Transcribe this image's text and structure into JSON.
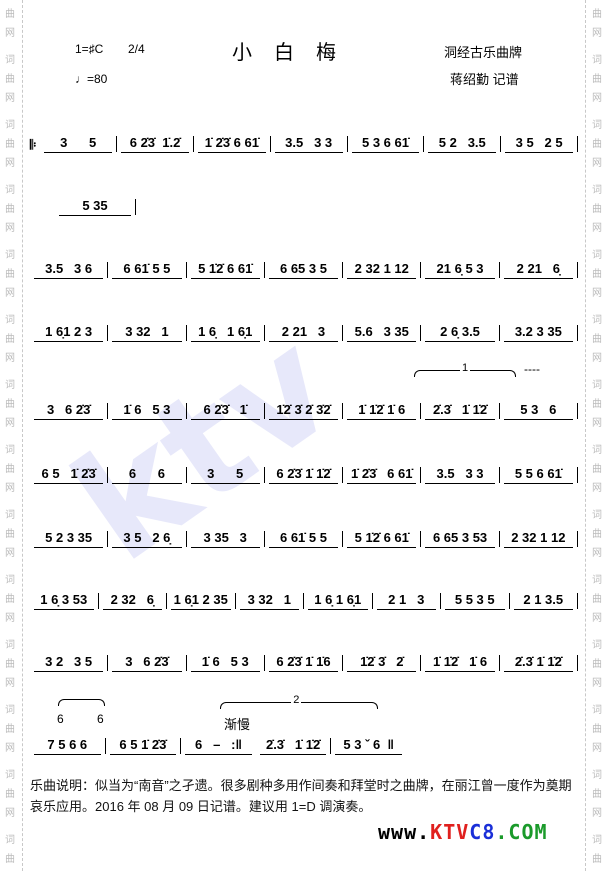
{
  "header": {
    "key": "1=♯C",
    "meter": "2/4",
    "tempo": "♩=80",
    "title": "小白梅",
    "genre": "洞经古乐曲牌",
    "author": "蒋绍勤 记谱"
  },
  "side_watermark": [
    "词",
    "曲",
    "网"
  ],
  "score": {
    "lines": [
      [
        "3      5",
        "6 2̇3̇  1̇.2̇",
        "1̇ 2̇3̇ 6 61̇",
        "3.5   3 3",
        "5 3 6 61̇",
        "5 2   3.5",
        "3 5   2 5"
      ],
      [
        "5 35"
      ],
      [
        "3.5   3 6",
        "6 61̇ 5 5",
        "5 1̇2̇ 6 61̇",
        "6 65 3 5",
        "2 32 1 12",
        "21 6̣ 5 3",
        "2 21   6̣"
      ],
      [
        "1 6̣1 2 3",
        "3 32   1",
        "1 6̣   1 6̣1",
        "2 21   3",
        "5.6   3 35",
        "2 6̣ 3.5",
        "3.2 3 35"
      ],
      [
        "3   6 2̇3̇",
        "1̇ 6   5 3",
        "6 2̇3̇   1̇",
        "1̇2̇ 3̇ 2̇ 3̇2̇",
        "1̇ 1̇2̇ 1̇ 6",
        "2̇.3̇   1̇ 1̇2̇",
        "5 3   6"
      ],
      [
        "6 5   1̇ 2̇3̇",
        "6      6",
        "3      5",
        "6 2̇3̇ 1̇ 1̇2̇",
        "1̇ 2̇3̇   6 61̇",
        "3.5   3 3",
        "5 5 6 61̇"
      ],
      [
        "5 2 3 35",
        "3 5   2 6̣",
        "3 35   3",
        "6 61̇ 5 5",
        "5 1̇2̇ 6 61̇",
        "6 65 3 53",
        "2 32 1 12"
      ],
      [
        "1 6̣ 3 53",
        "2 32   6̣",
        "1 6̣1 2 35",
        "3 32   1",
        "1 6̣ 1 6̣1",
        "2 1   3",
        "5 5 3 5",
        "2 1 3.5"
      ],
      [
        "3 2   3 5",
        "3   6 2̇3̇",
        "1̇ 6   5 3",
        "6 2̇3̇ 1̇ 1̇6",
        "1̇2̇ 3̇   2̇",
        "1̇ 1̇2̇   1̇ 6",
        "2̇.3̇ 1̇ 1̇2̇"
      ],
      [
        "7 5 6 6",
        "6 5 1̇ 2̇3̇",
        "6   –   :‖",
        "2̇.3̇   1̇ 1̇2̇",
        "5 3 ˇ 6  ‖"
      ]
    ],
    "repeat_start": "𝄆",
    "volta1": "1",
    "volta1_dashes": "----",
    "volta2": "2",
    "alt_notes": [
      "6",
      "6"
    ],
    "tempo_mark": "渐慢"
  },
  "description": "乐曲说明：似当为“南音”之孑遗。很多剧种多用作间奏和拜堂时之曲牌，在丽江曾一度作为奠期哀乐应用。2016 年 08 月 09 日记谱。建议用 1=D 调演奏。",
  "logo": {
    "www": "www.",
    "ktv": "KTV",
    "c8": "C8",
    ".com": ".COM",
    "colors": {
      "www": "#000000",
      "ktv": "#e0201e",
      "c8": "#1a2fd8",
      "com": "#1a9a2a"
    }
  }
}
